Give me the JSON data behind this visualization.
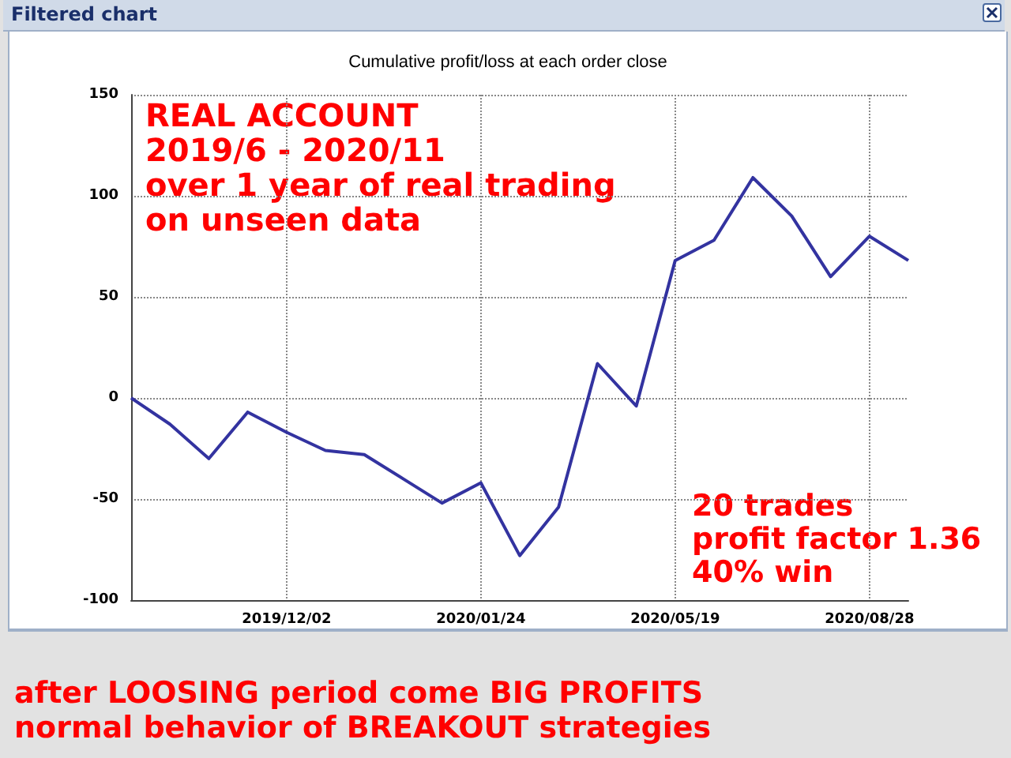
{
  "chart_data": {
    "type": "line",
    "title": "Cumulative profit/loss at each order close",
    "categories": [
      null,
      null,
      null,
      null,
      "2019/12/02",
      null,
      null,
      null,
      null,
      "2020/01/24",
      null,
      null,
      null,
      null,
      "2020/05/19",
      null,
      null,
      null,
      null,
      "2020/08/28",
      null
    ],
    "series": [
      {
        "color": "#3333a0",
        "values": [
          0,
          -13,
          -30,
          -7,
          -17,
          -26,
          -28,
          -40,
          -52,
          -42,
          -78,
          -54,
          17,
          -4,
          68,
          78,
          109,
          90,
          60,
          80,
          68
        ]
      }
    ],
    "ylim": [
      -100,
      150
    ],
    "yticks": [
      -100,
      -50,
      0,
      50,
      100,
      150
    ],
    "grid": true,
    "marker": "none",
    "line_style": "solid",
    "annotations": [
      "Filtered chart",
      "REAL ACCOUNT\n2019/6 - 2020/11\nover 1 year of real trading\non unseen data",
      "20 trades\nprofit factor 1.36\n40% win",
      "after LOOSING period come BIG PROFITS\nnormal behavior of BREAKOUT strategies"
    ]
  }
}
